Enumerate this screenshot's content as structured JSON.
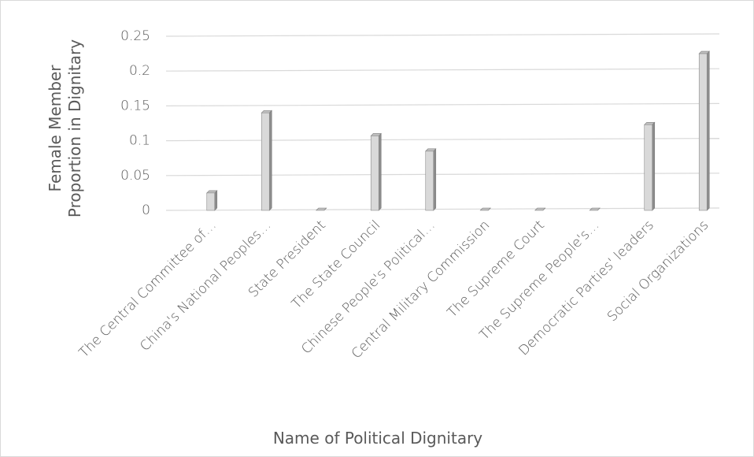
{
  "chart_data": {
    "type": "bar3d",
    "y_label": "Female Member Proportion in Dignitary",
    "x_label": "Name of Political Dignitary",
    "categories": [
      "The Central Committee of…",
      "China's National Peoples…",
      "State President",
      "The State Council",
      "Chinese People's Political…",
      "Central Military Commission",
      "The Supreme Court",
      "The Supreme People's…",
      "Democratic Parties' leaders",
      "Social Organizations"
    ],
    "values": [
      0.025,
      0.14,
      0,
      0.107,
      0.085,
      0,
      0,
      0,
      0.123,
      0.225
    ],
    "color": "#d9d9d9",
    "ylim": [
      0,
      0.25
    ],
    "yticks": [
      0,
      0.05,
      0.1,
      0.15,
      0.2,
      0.25
    ],
    "grid": true
  }
}
